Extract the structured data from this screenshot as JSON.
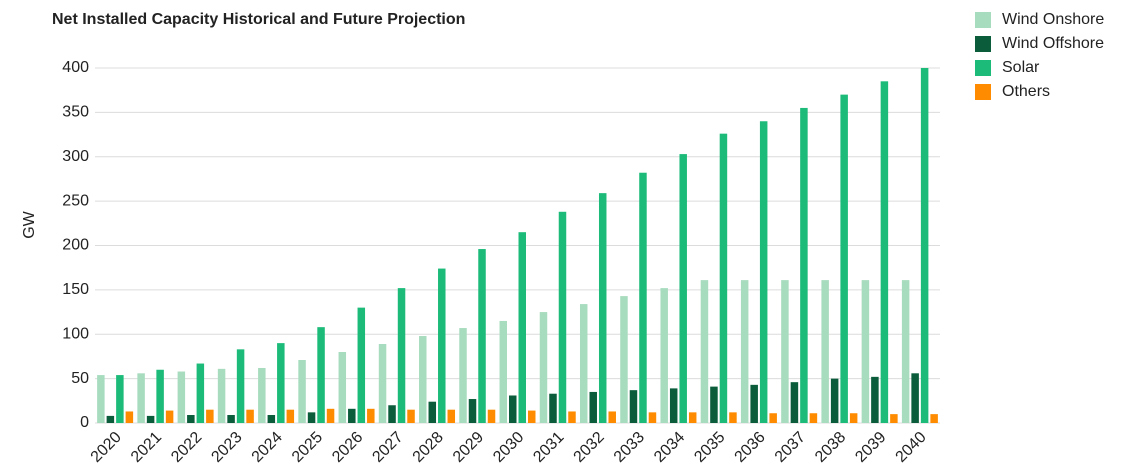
{
  "chart_data": {
    "type": "bar",
    "title": "Net Installed Capacity Historical and Future Projection",
    "y_label": "GW",
    "categories": [
      "2020",
      "2021",
      "2022",
      "2023",
      "2024",
      "2025",
      "2026",
      "2027",
      "2028",
      "2029",
      "2030",
      "2031",
      "2032",
      "2033",
      "2034",
      "2035",
      "2036",
      "2037",
      "2038",
      "2039",
      "2040"
    ],
    "series": [
      {
        "name": "Wind Onshore",
        "color": "#a8dcbf",
        "values": [
          54,
          56,
          58,
          61,
          62,
          71,
          80,
          89,
          98,
          107,
          115,
          125,
          134,
          143,
          152,
          161,
          161,
          161,
          161,
          161,
          161
        ]
      },
      {
        "name": "Wind Offshore",
        "color": "#0a5c3a",
        "values": [
          8,
          8,
          9,
          9,
          9,
          12,
          16,
          20,
          24,
          27,
          31,
          33,
          35,
          37,
          39,
          41,
          43,
          46,
          50,
          52,
          56
        ]
      },
      {
        "name": "Solar",
        "color": "#1dbb7a",
        "values": [
          54,
          60,
          67,
          83,
          90,
          108,
          130,
          152,
          174,
          196,
          215,
          238,
          259,
          282,
          303,
          326,
          340,
          355,
          370,
          385,
          400
        ]
      },
      {
        "name": "Others",
        "color": "#ff8c00",
        "values": [
          13,
          14,
          15,
          15,
          15,
          16,
          16,
          15,
          15,
          15,
          14,
          13,
          13,
          12,
          12,
          12,
          11,
          11,
          11,
          10,
          10
        ]
      }
    ],
    "ylim": [
      0,
      400
    ],
    "yticks": [
      0,
      50,
      100,
      150,
      200,
      250,
      300,
      350,
      400
    ],
    "grid": true,
    "legend": "right"
  }
}
